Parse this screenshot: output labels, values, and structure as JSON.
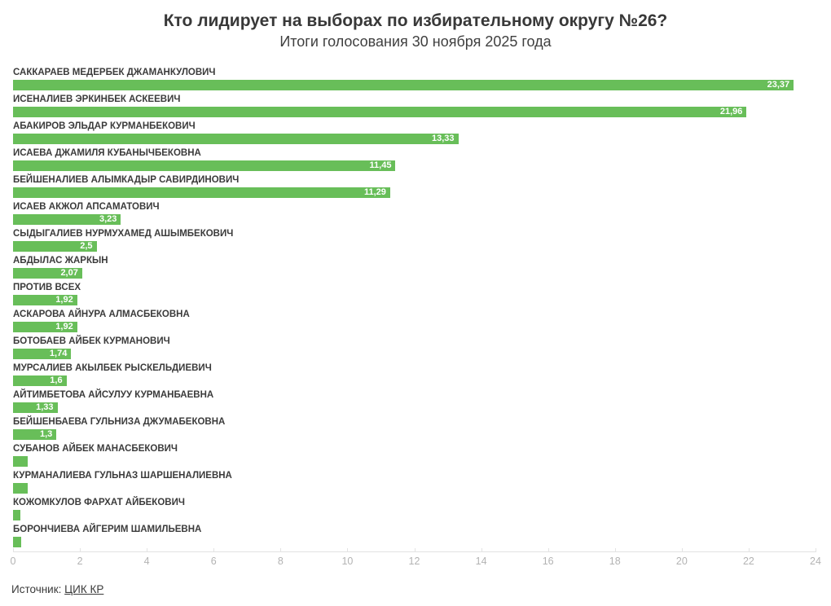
{
  "header": {
    "title": "Кто лидирует на выборах по избирательному округу №26?",
    "subtitle": "Итоги голосования 30 ноября 2025 года"
  },
  "chart_data": {
    "type": "bar",
    "orientation": "horizontal",
    "title": "Кто лидирует на выборах по избирательному округу №26?",
    "subtitle": "Итоги голосования 30 ноября 2025 года",
    "xlabel": "",
    "ylabel": "",
    "xlim": [
      0,
      24
    ],
    "x_ticks": [
      0,
      2,
      4,
      6,
      8,
      10,
      12,
      14,
      16,
      18,
      20,
      22,
      24
    ],
    "grid": false,
    "legend": false,
    "categories": [
      "САККАРАЕВ МЕДЕРБЕК ДЖАМАНКУЛОВИЧ",
      "ИСЕНАЛИЕВ ЭРКИНБЕК АСКЕЕВИЧ",
      "АБАКИРОВ ЭЛЬДАР КУРМАНБЕКОВИЧ",
      "ИСАЕВА ДЖАМИЛЯ КУБАНЫЧБЕКОВНА",
      "БЕЙШЕНАЛИЕВ АЛЫМКАДЫР САВИРДИНОВИЧ",
      "ИСАЕВ АКЖОЛ АПСАМАТОВИЧ",
      "СЫДЫГАЛИЕВ НУРМУХАМЕД АШЫМБЕКОВИЧ",
      "АБДЫЛАС ЖАРКЫН",
      "ПРОТИВ ВСЕХ",
      "АСКАРОВА АЙНУРА АЛМАСБЕКОВНА",
      "БОТОБАЕВ АЙБЕК КУРМАНОВИЧ",
      "МУРСАЛИЕВ АКЫЛБЕК РЫСКЕЛЬДИЕВИЧ",
      "АЙТИМБЕТОВА АЙСУЛУУ КУРМАНБАЕВНА",
      "БЕЙШЕНБАЕВА ГУЛЬНИЗА ДЖУМАБЕКОВНА",
      "СУБАНОВ АЙБЕК МАНАСБЕКОВИЧ",
      "КУРМАНАЛИЕВА ГУЛЬНАЗ ШАРШЕНАЛИЕВНА",
      "КОЖОМКУЛОВ ФАРХАТ АЙБЕКОВИЧ",
      "БОРОНЧИЕВА АЙГЕРИМ ШАМИЛЬЕВНА"
    ],
    "values": [
      23.37,
      21.96,
      13.33,
      11.45,
      11.29,
      3.23,
      2.5,
      2.07,
      1.92,
      1.92,
      1.74,
      1.6,
      1.33,
      1.3,
      0.44,
      0.44,
      0.22,
      0.24
    ],
    "value_labels": [
      "23,37",
      "21,96",
      "13,33",
      "11,45",
      "11,29",
      "3,23",
      "2,5",
      "2,07",
      "1,92",
      "1,92",
      "1,74",
      "1,6",
      "1,33",
      "1,3",
      "",
      "",
      "",
      ""
    ]
  },
  "footer": {
    "source_label": "Источник:",
    "source_link_text": "ЦИК КР"
  },
  "colors": {
    "bar": "#68be59",
    "bar_value_text": "#ffffff",
    "category_text": "#3b3b3b",
    "title_text": "#383838",
    "axis_tick_text": "#b3b3b3",
    "axis_line": "#e3e3e3",
    "background": "#ffffff"
  }
}
